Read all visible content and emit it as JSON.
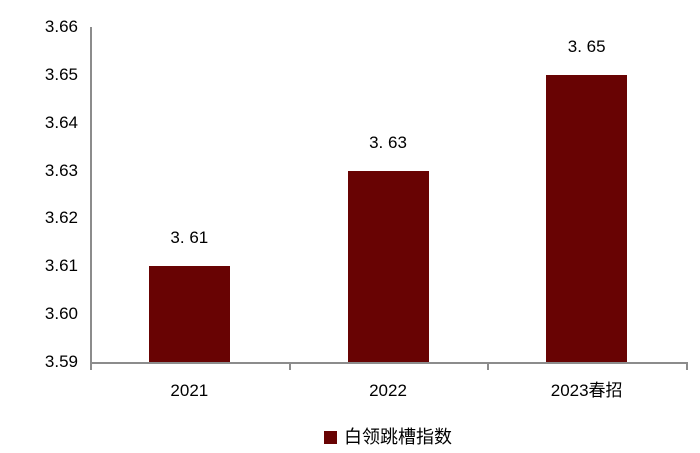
{
  "chart_data": {
    "type": "bar",
    "title": "",
    "categories": [
      "2021",
      "2022",
      "2023春招"
    ],
    "values": [
      3.61,
      3.63,
      3.65
    ],
    "value_labels": [
      "3. 61",
      "3. 63",
      "3. 65"
    ],
    "series": [
      {
        "name": "白领跳槽指数",
        "values": [
          3.61,
          3.63,
          3.65
        ]
      }
    ],
    "xlabel": "",
    "ylabel": "",
    "ylim": [
      3.59,
      3.66
    ],
    "ytick_step": 0.01,
    "ytick_labels": [
      "3.59",
      "3.60",
      "3.61",
      "3.62",
      "3.63",
      "3.64",
      "3.65",
      "3.66"
    ],
    "grid": false,
    "legend_position": "bottom-center",
    "colors": {
      "bar": "#680303",
      "axis": "#8C8C8C",
      "text": "#000000",
      "background": "#FFFFFF"
    }
  },
  "legend": {
    "label": "白领跳槽指数"
  }
}
